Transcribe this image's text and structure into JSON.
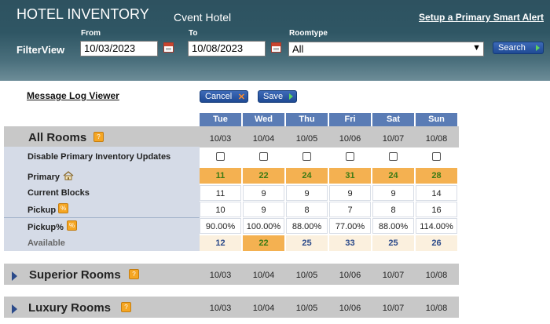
{
  "header": {
    "title": "HOTEL INVENTORY",
    "hotel_name": "Cvent Hotel",
    "setup_link": "Setup a Primary Smart Alert",
    "filterview_label": "FilterView",
    "from_label": "From",
    "from_value": "10/03/2023",
    "to_label": "To",
    "to_value": "10/08/2023",
    "roomtype_label": "Roomtype",
    "roomtype_value": "All",
    "search_button": "Search"
  },
  "toolbar": {
    "message_log_viewer": "Message Log Viewer",
    "cancel_button": "Cancel",
    "save_button": "Save"
  },
  "days": [
    "Tue",
    "Wed",
    "Thu",
    "Fri",
    "Sat",
    "Sun"
  ],
  "dates": [
    "10/03",
    "10/04",
    "10/05",
    "10/06",
    "10/07",
    "10/08"
  ],
  "all_rooms": {
    "title": "All Rooms",
    "labels": {
      "disable": "Disable Primary Inventory Updates",
      "primary": "Primary",
      "current_blocks": "Current Blocks",
      "pickup": "Pickup",
      "pickup_pct": "Pickup%",
      "available": "Available"
    },
    "primary": [
      "11",
      "22",
      "24",
      "31",
      "24",
      "28"
    ],
    "current_blocks": [
      "11",
      "9",
      "9",
      "9",
      "9",
      "14"
    ],
    "pickup": [
      "10",
      "9",
      "8",
      "7",
      "8",
      "16"
    ],
    "pickup_pct": [
      "90.00%",
      "100.00%",
      "88.00%",
      "77.00%",
      "88.00%",
      "114.00%"
    ],
    "available": [
      "12",
      "22",
      "25",
      "33",
      "25",
      "26"
    ]
  },
  "sections": [
    {
      "title": "Superior Rooms"
    },
    {
      "title": "Luxury Rooms"
    }
  ],
  "colors": {
    "header_bg": "#2f5664",
    "day_header": "#5a7cb5",
    "primary_cell": "#f4b151",
    "available_cell": "#fbf0de"
  }
}
